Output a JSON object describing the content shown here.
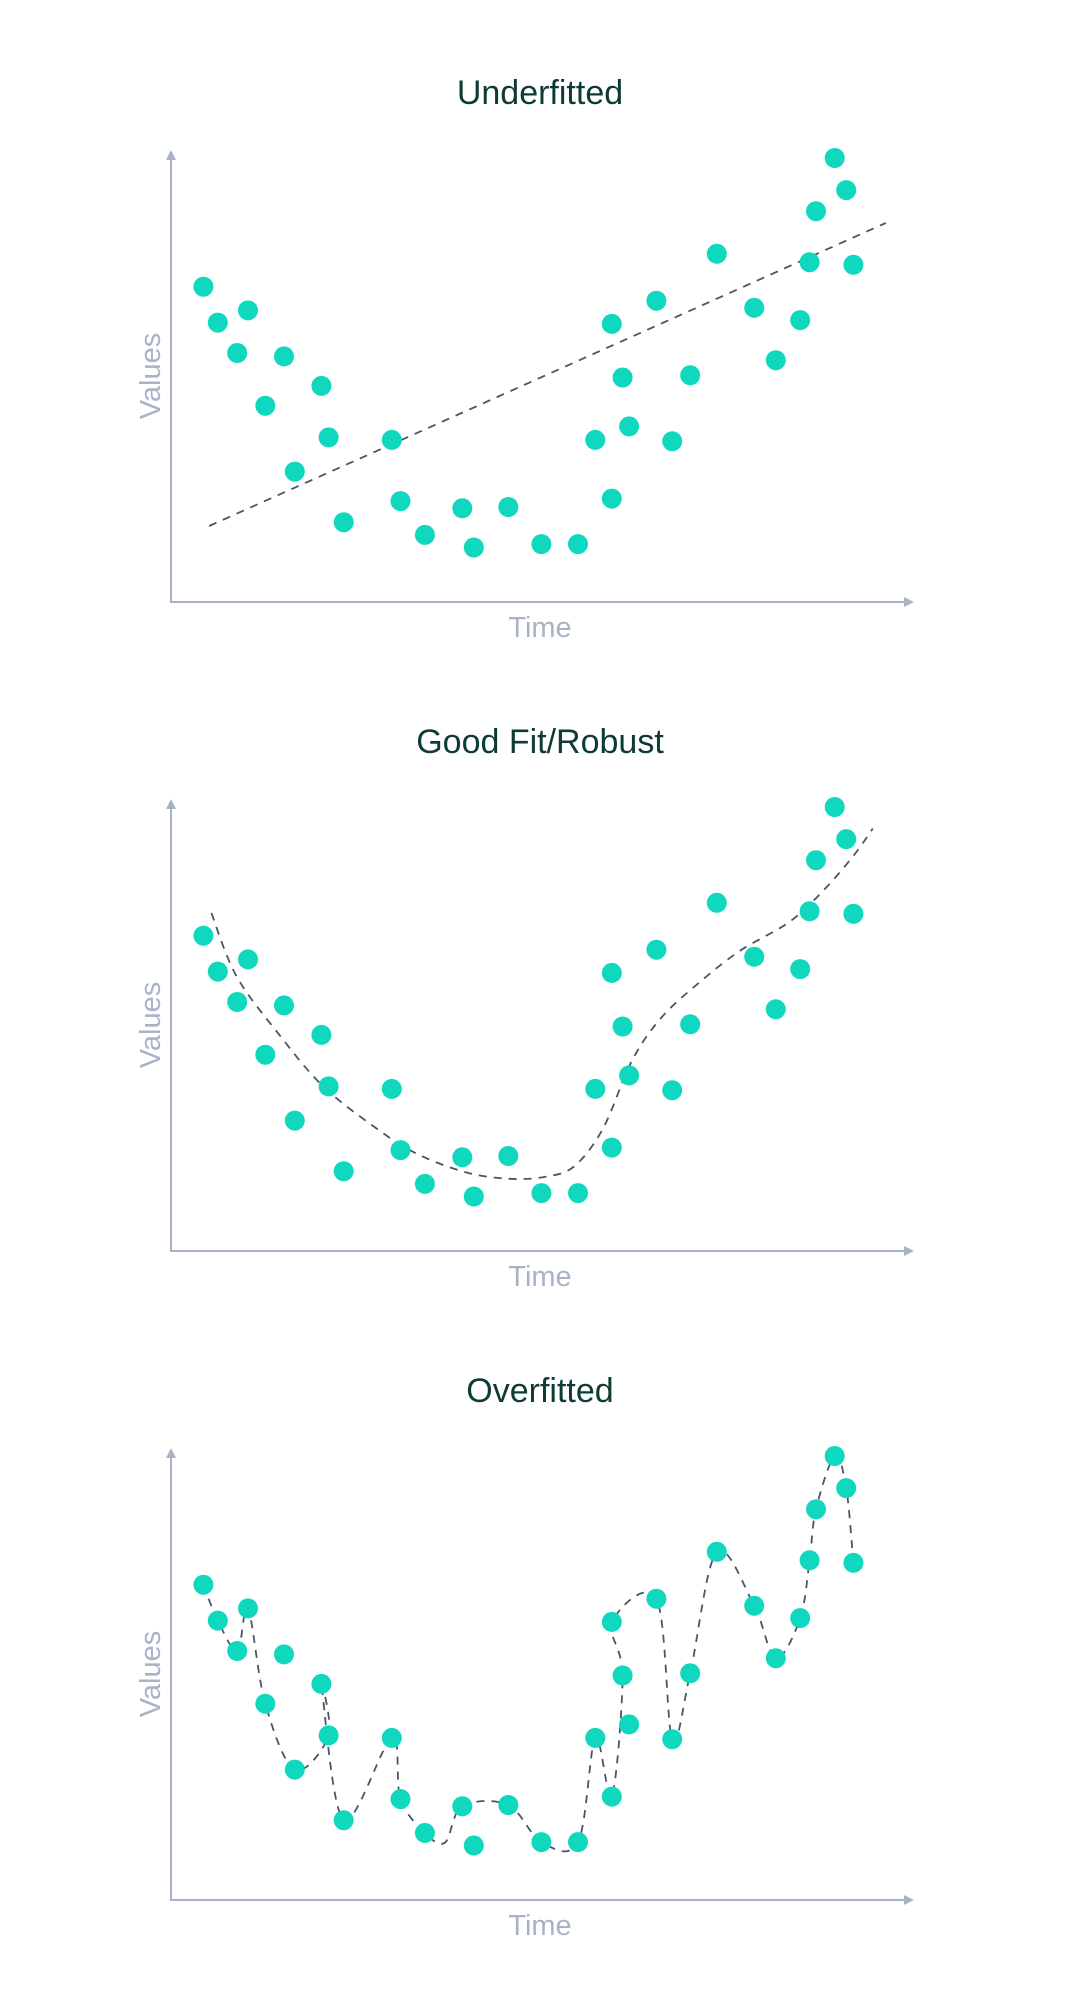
{
  "chart_data": [
    {
      "type": "scatter",
      "title": "Underfitted",
      "xlabel": "Time",
      "ylabel": "Values",
      "fit": "linear",
      "xlim": [
        0,
        100
      ],
      "ylim": [
        0,
        100
      ],
      "points": [
        [
          3.4,
          67.6
        ],
        [
          5.4,
          59.1
        ],
        [
          8.1,
          51.9
        ],
        [
          9.6,
          62.0
        ],
        [
          12.0,
          39.4
        ],
        [
          14.6,
          51.1
        ],
        [
          16.1,
          23.8
        ],
        [
          19.8,
          44.1
        ],
        [
          20.8,
          31.9
        ],
        [
          22.9,
          11.8
        ],
        [
          29.6,
          31.3
        ],
        [
          30.8,
          16.8
        ],
        [
          34.2,
          8.8
        ],
        [
          39.4,
          15.1
        ],
        [
          41.0,
          5.8
        ],
        [
          45.8,
          15.4
        ],
        [
          50.4,
          6.6
        ],
        [
          55.5,
          6.6
        ],
        [
          57.9,
          31.3
        ],
        [
          60.2,
          17.4
        ],
        [
          60.2,
          58.8
        ],
        [
          61.7,
          46.1
        ],
        [
          62.6,
          34.5
        ],
        [
          66.4,
          64.3
        ],
        [
          68.6,
          31.0
        ],
        [
          71.1,
          46.6
        ],
        [
          74.8,
          75.4
        ],
        [
          80.0,
          62.6
        ],
        [
          83.0,
          50.2
        ],
        [
          86.4,
          59.7
        ],
        [
          87.7,
          73.4
        ],
        [
          88.6,
          85.5
        ],
        [
          91.2,
          98.1
        ],
        [
          92.8,
          90.5
        ],
        [
          93.8,
          72.8
        ]
      ],
      "fit_points": [
        [
          4.2,
          10.9
        ],
        [
          98.3,
          82.7
        ]
      ]
    },
    {
      "type": "scatter",
      "title": "Good Fit/Robust",
      "xlabel": "Time",
      "ylabel": "Values",
      "fit": "smooth",
      "xlim": [
        0,
        100
      ],
      "ylim": [
        0,
        100
      ],
      "points": [
        [
          3.4,
          67.6
        ],
        [
          5.4,
          59.1
        ],
        [
          8.1,
          51.9
        ],
        [
          9.6,
          62.0
        ],
        [
          12.0,
          39.4
        ],
        [
          14.6,
          51.1
        ],
        [
          16.1,
          23.8
        ],
        [
          19.8,
          44.1
        ],
        [
          20.8,
          31.9
        ],
        [
          22.9,
          11.8
        ],
        [
          29.6,
          31.3
        ],
        [
          30.8,
          16.8
        ],
        [
          34.2,
          8.8
        ],
        [
          39.4,
          15.1
        ],
        [
          41.0,
          5.8
        ],
        [
          45.8,
          15.4
        ],
        [
          50.4,
          6.6
        ],
        [
          55.5,
          6.6
        ],
        [
          57.9,
          31.3
        ],
        [
          60.2,
          17.4
        ],
        [
          60.2,
          58.8
        ],
        [
          61.7,
          46.1
        ],
        [
          62.6,
          34.5
        ],
        [
          66.4,
          64.3
        ],
        [
          68.6,
          31.0
        ],
        [
          71.1,
          46.6
        ],
        [
          74.8,
          75.4
        ],
        [
          80.0,
          62.6
        ],
        [
          83.0,
          50.2
        ],
        [
          86.4,
          59.7
        ],
        [
          87.7,
          73.4
        ],
        [
          88.6,
          85.5
        ],
        [
          91.2,
          98.1
        ],
        [
          92.8,
          90.5
        ],
        [
          93.8,
          72.8
        ]
      ],
      "fit_points": [
        [
          4.5,
          73.0
        ],
        [
          8.0,
          58.0
        ],
        [
          14.0,
          44.0
        ],
        [
          20.0,
          32.0
        ],
        [
          27.0,
          22.5
        ],
        [
          33.0,
          16.0
        ],
        [
          40.0,
          11.5
        ],
        [
          46.0,
          10.0
        ],
        [
          51.0,
          10.5
        ],
        [
          55.0,
          13.0
        ],
        [
          59.0,
          22.0
        ],
        [
          63.0,
          38.0
        ],
        [
          67.0,
          48.0
        ],
        [
          72.0,
          56.0
        ],
        [
          78.0,
          64.0
        ],
        [
          85.0,
          71.0
        ],
        [
          90.0,
          79.0
        ],
        [
          94.0,
          87.0
        ],
        [
          96.5,
          93.0
        ]
      ]
    },
    {
      "type": "scatter",
      "title": "Overfitted",
      "xlabel": "Time",
      "ylabel": "Values",
      "fit": "interpolating",
      "xlim": [
        0,
        100
      ],
      "ylim": [
        0,
        100
      ],
      "points": [
        [
          3.4,
          67.6
        ],
        [
          5.4,
          59.1
        ],
        [
          8.1,
          51.9
        ],
        [
          9.6,
          62.0
        ],
        [
          12.0,
          39.4
        ],
        [
          14.6,
          51.1
        ],
        [
          16.1,
          23.8
        ],
        [
          19.8,
          44.1
        ],
        [
          20.8,
          31.9
        ],
        [
          22.9,
          11.8
        ],
        [
          29.6,
          31.3
        ],
        [
          30.8,
          16.8
        ],
        [
          34.2,
          8.8
        ],
        [
          39.4,
          15.1
        ],
        [
          41.0,
          5.8
        ],
        [
          45.8,
          15.4
        ],
        [
          50.4,
          6.6
        ],
        [
          55.5,
          6.6
        ],
        [
          57.9,
          31.3
        ],
        [
          60.2,
          17.4
        ],
        [
          60.2,
          58.8
        ],
        [
          61.7,
          46.1
        ],
        [
          62.6,
          34.5
        ],
        [
          66.4,
          64.3
        ],
        [
          68.6,
          31.0
        ],
        [
          71.1,
          46.6
        ],
        [
          74.8,
          75.4
        ],
        [
          80.0,
          62.6
        ],
        [
          83.0,
          50.2
        ],
        [
          86.4,
          59.7
        ],
        [
          87.7,
          73.4
        ],
        [
          88.6,
          85.5
        ],
        [
          91.2,
          98.1
        ],
        [
          92.8,
          90.5
        ],
        [
          93.8,
          72.8
        ]
      ],
      "fit_points": [
        [
          3.4,
          67.6
        ],
        [
          5.4,
          59.1
        ],
        [
          8.1,
          51.9
        ],
        [
          9.6,
          62.0
        ],
        [
          12.0,
          39.4
        ],
        [
          16.1,
          23.8
        ],
        [
          20.8,
          31.9
        ],
        [
          19.8,
          44.1
        ],
        [
          22.9,
          11.8
        ],
        [
          29.6,
          31.3
        ],
        [
          30.8,
          16.8
        ],
        [
          34.2,
          8.8
        ],
        [
          37.0,
          6.5
        ],
        [
          39.4,
          15.1
        ],
        [
          45.8,
          15.4
        ],
        [
          50.4,
          6.6
        ],
        [
          55.5,
          6.6
        ],
        [
          57.9,
          31.3
        ],
        [
          60.2,
          17.4
        ],
        [
          61.7,
          46.1
        ],
        [
          60.2,
          58.8
        ],
        [
          66.4,
          64.3
        ],
        [
          68.6,
          31.0
        ],
        [
          71.1,
          46.6
        ],
        [
          74.8,
          75.4
        ],
        [
          80.0,
          62.6
        ],
        [
          83.0,
          50.2
        ],
        [
          86.4,
          59.7
        ],
        [
          87.7,
          73.4
        ],
        [
          88.6,
          85.5
        ],
        [
          91.2,
          98.1
        ],
        [
          92.8,
          90.5
        ],
        [
          93.8,
          72.8
        ]
      ]
    }
  ]
}
